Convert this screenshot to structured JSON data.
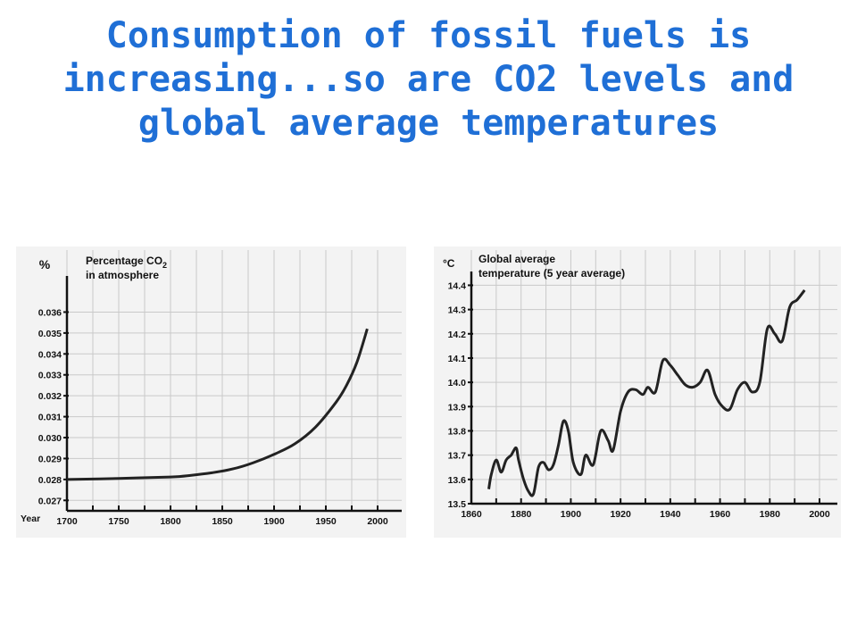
{
  "slide": {
    "title": "Consumption of fossil fuels is increasing...so are CO2 levels and global average temperatures",
    "title_color": "#1f6fd6"
  },
  "chart_data": [
    {
      "type": "line",
      "title": "Percentage CO",
      "title_subscript": "2",
      "title_line2": "in atmosphere",
      "ylabel": "%",
      "xlabel": "Year",
      "x_ticks": [
        "1700",
        "1750",
        "1800",
        "1850",
        "1900",
        "1950",
        "2000"
      ],
      "y_ticks": [
        "0.027",
        "0.028",
        "0.029",
        "0.030",
        "0.031",
        "0.032",
        "0.033",
        "0.034",
        "0.035",
        "0.036"
      ],
      "xlim": [
        1700,
        2000
      ],
      "ylim": [
        0.0265,
        0.0373
      ],
      "grid": true,
      "line_color": "#222222",
      "series": [
        {
          "x": [
            1700,
            1750,
            1800,
            1820,
            1840,
            1860,
            1880,
            1900,
            1920,
            1940,
            1960,
            1970,
            1980,
            1990
          ],
          "values": [
            0.028,
            0.02805,
            0.02812,
            0.0282,
            0.02832,
            0.0285,
            0.0288,
            0.0292,
            0.0297,
            0.0305,
            0.0317,
            0.0325,
            0.0336,
            0.0352
          ]
        }
      ]
    },
    {
      "type": "line",
      "title": "Global average",
      "title_line2": "temperature (5 year average)",
      "ylabel": "°C",
      "x_ticks": [
        "1860",
        "1880",
        "1900",
        "1920",
        "1940",
        "1960",
        "1980",
        "2000"
      ],
      "y_ticks": [
        "13.5",
        "13.6",
        "13.7",
        "13.8",
        "13.9",
        "14.0",
        "14.1",
        "14.2",
        "14.3",
        "14.4"
      ],
      "xlim": [
        1860,
        2000
      ],
      "ylim": [
        13.5,
        14.42
      ],
      "grid": true,
      "line_color": "#222222",
      "series": [
        {
          "x": [
            1867,
            1868,
            1870,
            1872,
            1874,
            1876,
            1878,
            1879,
            1881,
            1883,
            1885,
            1887,
            1889,
            1891,
            1893,
            1895,
            1897,
            1899,
            1901,
            1904,
            1906,
            1909,
            1912,
            1915,
            1917,
            1920,
            1923,
            1926,
            1929,
            1931,
            1934,
            1937,
            1940,
            1943,
            1946,
            1949,
            1952,
            1955,
            1958,
            1961,
            1964,
            1967,
            1970,
            1973,
            1976,
            1979,
            1982,
            1985,
            1988,
            1991,
            1994
          ],
          "values": [
            13.56,
            13.62,
            13.68,
            13.63,
            13.68,
            13.7,
            13.73,
            13.68,
            13.6,
            13.55,
            13.54,
            13.65,
            13.67,
            13.64,
            13.66,
            13.74,
            13.84,
            13.8,
            13.67,
            13.62,
            13.7,
            13.66,
            13.8,
            13.76,
            13.72,
            13.88,
            13.96,
            13.97,
            13.95,
            13.98,
            13.96,
            14.09,
            14.07,
            14.03,
            13.99,
            13.98,
            14.0,
            14.05,
            13.95,
            13.9,
            13.89,
            13.97,
            14.0,
            13.96,
            14.0,
            14.22,
            14.2,
            14.17,
            14.31,
            14.34,
            14.38
          ]
        }
      ]
    }
  ]
}
